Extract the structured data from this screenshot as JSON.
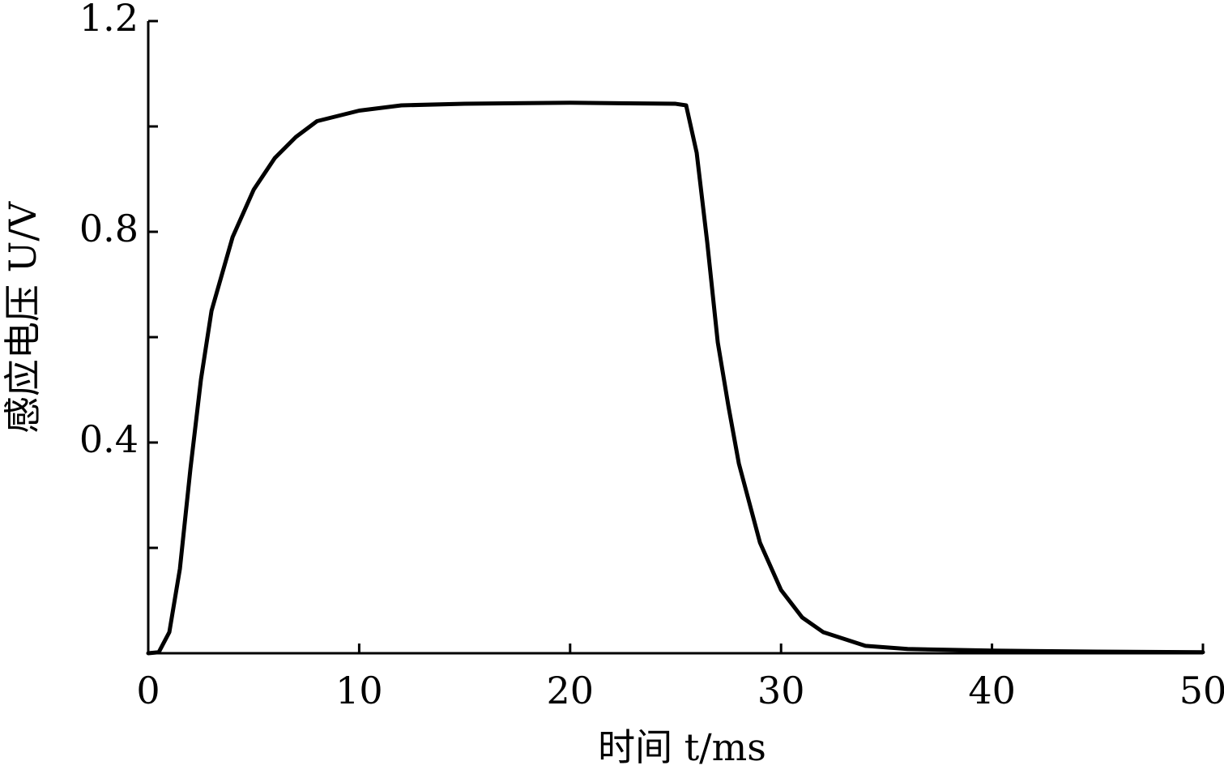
{
  "chart_data": {
    "type": "line",
    "x_label": "时间 t/ms",
    "y_label": "感应电压 U/V",
    "x": [
      0,
      0.5,
      1,
      1.5,
      2,
      2.5,
      3,
      4,
      5,
      6,
      7,
      8,
      10,
      12,
      15,
      20,
      25,
      25.5,
      26,
      26.5,
      27,
      27.5,
      28,
      29,
      30,
      31,
      32,
      34,
      36,
      40,
      45,
      50
    ],
    "series": [
      {
        "color": "#000000",
        "values": [
          0,
          0.002,
          0.04,
          0.16,
          0.35,
          0.52,
          0.65,
          0.79,
          0.88,
          0.94,
          0.98,
          1.01,
          1.03,
          1.04,
          1.043,
          1.045,
          1.043,
          1.04,
          0.95,
          0.78,
          0.59,
          0.47,
          0.36,
          0.21,
          0.12,
          0.068,
          0.04,
          0.014,
          0.008,
          0.005,
          0.003,
          0.002
        ]
      }
    ],
    "xlim": [
      0,
      50
    ],
    "xticks": [
      0,
      10,
      20,
      30,
      40,
      50
    ],
    "ylim": [
      0,
      1.2
    ],
    "yticks": [
      0.4,
      0.8,
      1.2
    ],
    "yminor_ticks": [
      0.2,
      0.6,
      1.0
    ],
    "grid": false
  }
}
